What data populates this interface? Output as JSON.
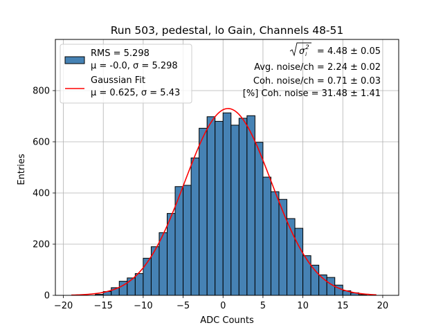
{
  "chart_data": {
    "type": "bar",
    "title": "Run 503, pedestal, lo Gain, Channels 48-51",
    "xlabel": "ADC Counts",
    "ylabel": "Entries",
    "xlim": [
      -21,
      22
    ],
    "ylim": [
      0,
      1000
    ],
    "xticks": [
      -20,
      -15,
      -10,
      -5,
      0,
      5,
      10,
      15,
      20
    ],
    "yticks": [
      0,
      200,
      400,
      600,
      800
    ],
    "grid": true,
    "bin_width": 1,
    "bins": [
      {
        "x0": -16,
        "y": 4
      },
      {
        "x0": -15,
        "y": 15
      },
      {
        "x0": -14,
        "y": 30
      },
      {
        "x0": -13,
        "y": 55
      },
      {
        "x0": -12,
        "y": 68
      },
      {
        "x0": -11,
        "y": 85
      },
      {
        "x0": -10,
        "y": 145
      },
      {
        "x0": -9,
        "y": 190
      },
      {
        "x0": -8,
        "y": 245
      },
      {
        "x0": -7,
        "y": 320
      },
      {
        "x0": -6,
        "y": 425
      },
      {
        "x0": -5,
        "y": 430
      },
      {
        "x0": -4,
        "y": 537
      },
      {
        "x0": -3,
        "y": 653
      },
      {
        "x0": -2,
        "y": 698
      },
      {
        "x0": -1,
        "y": 680
      },
      {
        "x0": 0,
        "y": 713
      },
      {
        "x0": 1,
        "y": 665
      },
      {
        "x0": 2,
        "y": 692
      },
      {
        "x0": 3,
        "y": 702
      },
      {
        "x0": 4,
        "y": 598
      },
      {
        "x0": 5,
        "y": 462
      },
      {
        "x0": 6,
        "y": 405
      },
      {
        "x0": 7,
        "y": 375
      },
      {
        "x0": 8,
        "y": 300
      },
      {
        "x0": 9,
        "y": 262
      },
      {
        "x0": 10,
        "y": 155
      },
      {
        "x0": 11,
        "y": 118
      },
      {
        "x0": 12,
        "y": 80
      },
      {
        "x0": 13,
        "y": 70
      },
      {
        "x0": 14,
        "y": 40
      },
      {
        "x0": 15,
        "y": 18
      },
      {
        "x0": 16,
        "y": 10
      },
      {
        "x0": 17,
        "y": 3
      }
    ],
    "fit": {
      "mu": 0.625,
      "sigma": 5.43,
      "amplitude": 730,
      "range": [
        -19,
        19.2
      ],
      "color": "#ff0000"
    },
    "bar_color": "#4682b4",
    "legend_position": "top-left",
    "legend": [
      {
        "kind": "patch",
        "line1": "RMS = 5.298",
        "line2": "μ = -0.0, σ = 5.298"
      },
      {
        "kind": "line",
        "line1": "Gaussian Fit",
        "line2": "μ = 0.625, σ = 5.43"
      }
    ],
    "annotations": [
      "= 4.48 ± 0.05",
      "Avg. noise/ch = 2.24 ± 0.02",
      "Coh. noise/ch = 0.71 ± 0.03",
      "[%] Coh. noise = 31.48 ± 1.41"
    ]
  }
}
